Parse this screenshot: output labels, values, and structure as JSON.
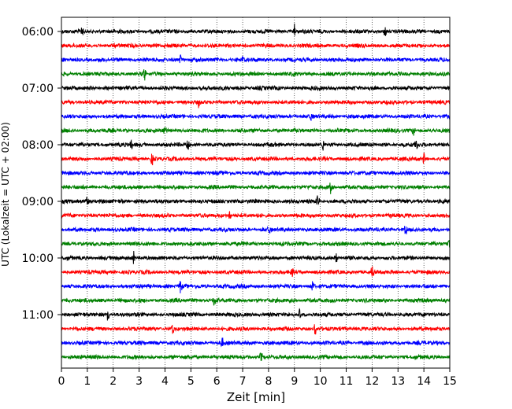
{
  "chart_data": {
    "type": "line",
    "title": "",
    "xlabel": "Zeit  [min]",
    "ylabel": "UTC (Lokalzeit = UTC + 02:00)",
    "xlim": [
      0,
      15
    ],
    "xticks": [
      0,
      1,
      2,
      3,
      4,
      5,
      6,
      7,
      8,
      9,
      10,
      11,
      12,
      13,
      14,
      15
    ],
    "xtick_labels": [
      "0",
      "1",
      "2",
      "3",
      "4",
      "5",
      "6",
      "7",
      "8",
      "9",
      "10",
      "11",
      "12",
      "13",
      "14",
      "15"
    ],
    "ytick_labels": [
      "06:00",
      "07:00",
      "08:00",
      "09:00",
      "10:00",
      "11:00"
    ],
    "ytick_times": [
      "06:00",
      "07:00",
      "08:00",
      "09:00",
      "10:00",
      "11:00"
    ],
    "grid": "vertical dotted lines at each minute",
    "line_colors": [
      "#000000",
      "#ff0000",
      "#0000ff",
      "#008000"
    ],
    "trace_start_times": [
      "06:00",
      "06:15",
      "06:30",
      "06:45",
      "07:00",
      "07:15",
      "07:30",
      "07:45",
      "08:00",
      "08:15",
      "08:30",
      "08:45",
      "09:00",
      "09:15",
      "09:30",
      "09:45",
      "10:00",
      "10:15",
      "10:30",
      "10:45",
      "11:00",
      "11:15",
      "11:30",
      "11:45"
    ],
    "series": [
      {
        "color": "#000000",
        "start": "06:00",
        "spikes_min": [
          0.8,
          9.0,
          12.5
        ]
      },
      {
        "color": "#ff0000",
        "start": "06:15",
        "spikes_min": []
      },
      {
        "color": "#0000ff",
        "start": "06:30",
        "spikes_min": [
          7.0,
          4.6
        ]
      },
      {
        "color": "#008000",
        "start": "06:45",
        "spikes_min": [
          3.2
        ]
      },
      {
        "color": "#000000",
        "start": "07:00",
        "spikes_min": []
      },
      {
        "color": "#ff0000",
        "start": "07:15",
        "spikes_min": [
          5.3
        ]
      },
      {
        "color": "#0000ff",
        "start": "07:30",
        "spikes_min": [
          9.6
        ]
      },
      {
        "color": "#008000",
        "start": "07:45",
        "spikes_min": [
          4.0,
          13.6
        ]
      },
      {
        "color": "#000000",
        "start": "08:00",
        "spikes_min": [
          4.9,
          10.1,
          2.7,
          13.7
        ]
      },
      {
        "color": "#ff0000",
        "start": "08:15",
        "spikes_min": [
          3.5,
          14.0
        ]
      },
      {
        "color": "#0000ff",
        "start": "08:30",
        "spikes_min": []
      },
      {
        "color": "#008000",
        "start": "08:45",
        "spikes_min": [
          10.4
        ]
      },
      {
        "color": "#000000",
        "start": "09:00",
        "spikes_min": [
          1.0,
          9.9
        ]
      },
      {
        "color": "#ff0000",
        "start": "09:15",
        "spikes_min": [
          6.5
        ]
      },
      {
        "color": "#0000ff",
        "start": "09:30",
        "spikes_min": [
          8.0,
          13.3
        ]
      },
      {
        "color": "#008000",
        "start": "09:45",
        "spikes_min": [
          15.0
        ]
      },
      {
        "color": "#000000",
        "start": "10:00",
        "spikes_min": [
          2.8,
          10.6
        ]
      },
      {
        "color": "#ff0000",
        "start": "10:15",
        "spikes_min": [
          8.9,
          12.0
        ]
      },
      {
        "color": "#0000ff",
        "start": "10:30",
        "spikes_min": [
          9.7,
          4.6
        ]
      },
      {
        "color": "#008000",
        "start": "10:45",
        "spikes_min": [
          5.9
        ]
      },
      {
        "color": "#000000",
        "start": "11:00",
        "spikes_min": [
          1.8,
          9.2
        ]
      },
      {
        "color": "#ff0000",
        "start": "11:15",
        "spikes_min": [
          4.3,
          9.8
        ]
      },
      {
        "color": "#0000ff",
        "start": "11:30",
        "spikes_min": [
          6.2
        ]
      },
      {
        "color": "#008000",
        "start": "11:45",
        "spikes_min": [
          7.7
        ]
      }
    ]
  }
}
